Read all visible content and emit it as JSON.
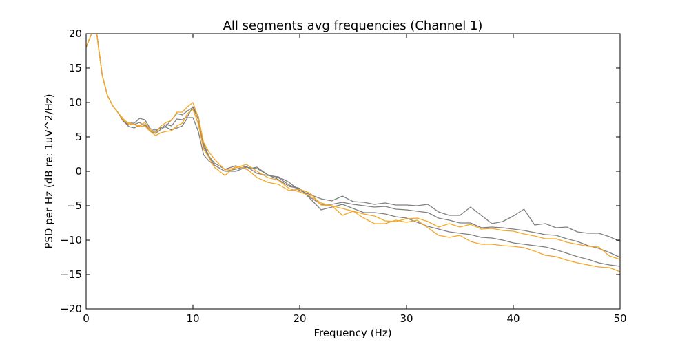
{
  "chart_data": {
    "type": "line",
    "title": "All segments avg frequencies (Channel 1)",
    "xlabel": "Frequency (Hz)",
    "ylabel": "PSD per Hz (dB re: 1uV^2/Hz)",
    "xlim": [
      0,
      50
    ],
    "ylim": [
      -20,
      20
    ],
    "xticks": [
      0,
      10,
      20,
      30,
      40,
      50
    ],
    "yticks": [
      20,
      15,
      10,
      5,
      0,
      -5,
      -10,
      -15,
      -20
    ],
    "xtick_labels": [
      "0",
      "10",
      "20",
      "30",
      "40",
      "50"
    ],
    "ytick_labels": [
      "20",
      "15",
      "10",
      "5",
      "0",
      "−5",
      "−10",
      "−15",
      "−20"
    ],
    "grid": false,
    "legend": "none",
    "colors": {
      "gray": "#808080",
      "orange": "#f5a623"
    },
    "series": [
      {
        "color": "#808080",
        "x": [
          0,
          0.5,
          1,
          1.5,
          2,
          2.5,
          3,
          3.5,
          4,
          4.5,
          5,
          5.5,
          6,
          6.5,
          7,
          7.5,
          8,
          8.5,
          9,
          9.5,
          10,
          10.5,
          11,
          11.5,
          12,
          13,
          14,
          15,
          16,
          17,
          18,
          19,
          20,
          21,
          22,
          23,
          24,
          25,
          26,
          27,
          28,
          29,
          30,
          31,
          32,
          33,
          34,
          35,
          36,
          37,
          38,
          39,
          40,
          41,
          42,
          43,
          44,
          45,
          46,
          47,
          48,
          49,
          50
        ],
        "y": [
          18,
          20,
          20,
          14,
          11,
          9.5,
          8.5,
          7.5,
          7,
          7,
          7.7,
          7.5,
          6.2,
          6,
          6.3,
          6.8,
          6.6,
          7.6,
          7.5,
          8,
          9.4,
          8,
          4,
          2.2,
          1.2,
          0.3,
          0.8,
          0.3,
          0.6,
          -0.5,
          -1.2,
          -2.2,
          -2.5,
          -3.8,
          -4.8,
          -4.8,
          -4.5,
          -4.8,
          -5,
          -5.2,
          -5.1,
          -5.5,
          -5.6,
          -5.8,
          -6,
          -6.8,
          -7.1,
          -7.5,
          -7.5,
          -8.2,
          -8.1,
          -8.2,
          -8.4,
          -8.6,
          -8.9,
          -9.2,
          -9.3,
          -9.8,
          -10.2,
          -10.8,
          -11.2,
          -11.8,
          -12.5
        ]
      },
      {
        "color": "#808080",
        "x": [
          0,
          0.5,
          1,
          1.5,
          2,
          2.5,
          3,
          3.5,
          4,
          4.5,
          5,
          5.5,
          6,
          6.5,
          7,
          7.5,
          8,
          8.5,
          9,
          9.5,
          10,
          10.5,
          11,
          11.5,
          12,
          13,
          14,
          15,
          16,
          17,
          18,
          19,
          20,
          21,
          22,
          23,
          24,
          25,
          26,
          27,
          28,
          29,
          30,
          31,
          32,
          33,
          34,
          35,
          36,
          37,
          38,
          39,
          40,
          41,
          42,
          43,
          44,
          45,
          46,
          47,
          48,
          49,
          50
        ],
        "y": [
          18,
          20,
          20,
          14,
          11,
          9.5,
          8.5,
          7.3,
          6.5,
          6.3,
          6.7,
          6.8,
          6,
          5.8,
          6.4,
          6.4,
          6,
          6.3,
          6.6,
          7.8,
          7.8,
          5.8,
          2.4,
          1.5,
          0.9,
          0,
          0,
          0.6,
          0.4,
          -0.5,
          -0.9,
          -2,
          -2.5,
          -4,
          -5.6,
          -5.2,
          -4.8,
          -5.4,
          -6,
          -6,
          -6.2,
          -6.6,
          -6.8,
          -7.4,
          -8,
          -8.4,
          -8.8,
          -9,
          -9.2,
          -9.6,
          -9.7,
          -10,
          -10.4,
          -10.6,
          -10.8,
          -11,
          -11.4,
          -11.9,
          -12.4,
          -12.8,
          -13.3,
          -13.6,
          -13.8
        ]
      },
      {
        "color": "#808080",
        "x": [
          0,
          0.5,
          1,
          1.5,
          2,
          2.5,
          3,
          3.5,
          4,
          4.5,
          5,
          5.5,
          6,
          6.5,
          7,
          7.5,
          8,
          8.5,
          9,
          9.5,
          10,
          10.5,
          11,
          11.5,
          12,
          13,
          14,
          15,
          16,
          17,
          18,
          19,
          20,
          21,
          22,
          23,
          24,
          25,
          26,
          27,
          28,
          29,
          30,
          31,
          32,
          33,
          34,
          35,
          36,
          37,
          38,
          39,
          40,
          41,
          42,
          43,
          44,
          45,
          46,
          47,
          48,
          49,
          50
        ],
        "y": [
          18,
          20,
          20,
          14,
          11,
          9.5,
          8.5,
          7.2,
          6.8,
          6.8,
          7.1,
          6.6,
          5.8,
          5.5,
          6.1,
          6.6,
          7.5,
          8.4,
          8.2,
          8.8,
          9.3,
          7.5,
          3.6,
          2.1,
          0.9,
          0,
          0.3,
          0.7,
          -0.3,
          -0.6,
          -0.8,
          -1.6,
          -2.8,
          -3.4,
          -4,
          -4.3,
          -3.6,
          -4.4,
          -4.5,
          -4.8,
          -4.6,
          -4.9,
          -4.9,
          -5,
          -4.8,
          -5.9,
          -6.4,
          -6.4,
          -5.2,
          -6.4,
          -7.6,
          -7.3,
          -6.5,
          -5.5,
          -7.8,
          -7.6,
          -8.2,
          -8.1,
          -8.8,
          -9,
          -9,
          -9.5,
          -10.2
        ]
      },
      {
        "color": "#f5a623",
        "x": [
          0,
          0.5,
          1,
          1.5,
          2,
          2.5,
          3,
          3.5,
          4,
          4.5,
          5,
          5.5,
          6,
          6.5,
          7,
          7.5,
          8,
          8.5,
          9,
          9.5,
          10,
          10.5,
          11,
          11.5,
          12,
          13,
          14,
          15,
          16,
          17,
          18,
          19,
          20,
          21,
          22,
          23,
          24,
          25,
          26,
          27,
          28,
          29,
          30,
          31,
          32,
          33,
          34,
          35,
          36,
          37,
          38,
          39,
          40,
          41,
          42,
          43,
          44,
          45,
          46,
          47,
          48,
          49,
          50
        ],
        "y": [
          18,
          20,
          20,
          14,
          11,
          9.5,
          8.5,
          7.6,
          6.8,
          6.8,
          6.6,
          7.1,
          6,
          5.6,
          6.6,
          7.1,
          7.4,
          8.6,
          8.6,
          9.4,
          10,
          7.8,
          4.2,
          2.8,
          1.8,
          0.2,
          0.5,
          1,
          0,
          -0.9,
          -1.3,
          -2.5,
          -3,
          -3.6,
          -4.6,
          -5,
          -5.4,
          -5.8,
          -6.2,
          -6.5,
          -7.2,
          -7.3,
          -6.9,
          -6.8,
          -7.3,
          -8.1,
          -7.6,
          -8.1,
          -7.7,
          -8.4,
          -8.3,
          -8.6,
          -8.7,
          -9.1,
          -9.4,
          -9.8,
          -9.8,
          -10.3,
          -10.6,
          -10.9,
          -11,
          -12.3,
          -12.8
        ]
      },
      {
        "color": "#f5a623",
        "x": [
          0,
          0.5,
          1,
          1.5,
          2,
          2.5,
          3,
          3.5,
          4,
          4.5,
          5,
          5.5,
          6,
          6.5,
          7,
          7.5,
          8,
          8.5,
          9,
          9.5,
          10,
          10.5,
          11,
          11.5,
          12,
          13,
          14,
          15,
          16,
          17,
          18,
          19,
          20,
          21,
          22,
          23,
          24,
          25,
          26,
          27,
          28,
          29,
          30,
          31,
          32,
          33,
          34,
          35,
          36,
          37,
          38,
          39,
          40,
          41,
          42,
          43,
          44,
          45,
          46,
          47,
          48,
          49,
          50
        ],
        "y": [
          18,
          20,
          20,
          14,
          11,
          9.5,
          8.5,
          7.4,
          7,
          6.8,
          6.5,
          6.6,
          5.8,
          5.2,
          5.6,
          5.8,
          5.9,
          6.6,
          7,
          8.4,
          9,
          6.9,
          3.2,
          2,
          0.6,
          -0.6,
          0.7,
          0.4,
          -0.9,
          -1.6,
          -1.9,
          -2.8,
          -2.6,
          -3.2,
          -4.9,
          -5,
          -6.4,
          -5.8,
          -6.8,
          -7.6,
          -7.6,
          -7.1,
          -7.4,
          -7.1,
          -8.2,
          -9.3,
          -9.6,
          -9.3,
          -10.2,
          -10.6,
          -10.6,
          -10.8,
          -10.9,
          -11.1,
          -11.6,
          -12.2,
          -12.4,
          -12.9,
          -13.3,
          -13.6,
          -13.9,
          -14,
          -14.6
        ]
      }
    ]
  }
}
